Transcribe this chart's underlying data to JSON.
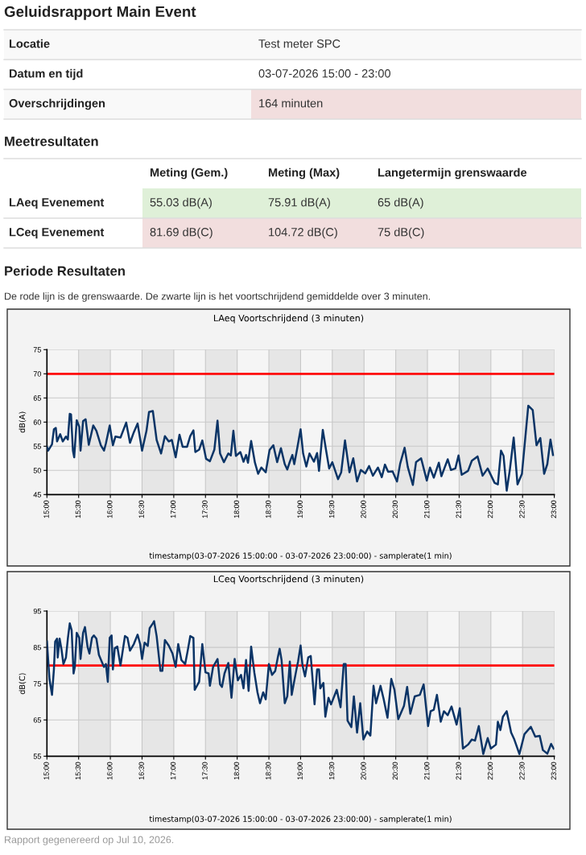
{
  "chart_data": [
    {
      "type": "other",
      "title": "Geluidsrapport Main Event",
      "y_categories": [
        "Locatie",
        "Datum en tijd",
        "Overschrijdingen"
      ],
      "cell_labels": [
        [
          "Test meter SPC"
        ],
        [
          "03-07-2026 15:00 - 23:00"
        ],
        [
          "164 minuten"
        ]
      ],
      "colors": [
        null,
        null,
        "#f2dede"
      ]
    },
    {
      "type": "other",
      "title": "Meetresultaten",
      "categories": [
        "Meting (Gem.)",
        "Meting (Max)",
        "Langetermijn grenswaarde"
      ],
      "y_categories": [
        "LAeq Evenement",
        "LCeq Evenement"
      ],
      "cell_labels": [
        [
          "55.03 dB(A)",
          "75.91 dB(A)",
          "65 dB(A)"
        ],
        [
          "81.69 dB(C)",
          "104.72 dB(C)",
          "75 dB(C)"
        ]
      ],
      "colors": [
        "#dff0d8",
        "#f2dede"
      ]
    },
    {
      "type": "other",
      "title": "Periode Resultaten",
      "subtitle": "De rode lijn is de grenswaarde. De zwarte lijn is het voortschrijdend gemiddelde over 3 minuten."
    },
    {
      "type": "line",
      "title": "LAeq Voortschrijdend (3 minuten)",
      "xlabel": "timestamp(03-07-2026 15:00:00 - 03-07-2026 23:00:00) - samplerate(1 min)",
      "ylabel": "dB(A)",
      "xlim": [
        15,
        23
      ],
      "ylim": [
        45,
        75
      ],
      "yticks": [
        45,
        50,
        55,
        60,
        65,
        70,
        75
      ],
      "xticks": [
        {
          "value": 15,
          "label": "15:00"
        },
        {
          "value": 15.5,
          "label": "15:30"
        },
        {
          "value": 16,
          "label": "16:00"
        },
        {
          "value": 16.5,
          "label": "16:30"
        },
        {
          "value": 17,
          "label": "17:00"
        },
        {
          "value": 17.5,
          "label": "17:30"
        },
        {
          "value": 18,
          "label": "18:00"
        },
        {
          "value": 18.5,
          "label": "18:30"
        },
        {
          "value": 19,
          "label": "19:00"
        },
        {
          "value": 19.5,
          "label": "19:30"
        },
        {
          "value": 20,
          "label": "20:00"
        },
        {
          "value": 20.5,
          "label": "20:30"
        },
        {
          "value": 21,
          "label": "21:00"
        },
        {
          "value": 21.5,
          "label": "21:30"
        },
        {
          "value": 22,
          "label": "22:00"
        },
        {
          "value": 22.5,
          "label": "22:30"
        },
        {
          "value": 23,
          "label": "23:00"
        }
      ],
      "grid": true,
      "line_style": "solid",
      "ref_lines": [
        {
          "axis": "y",
          "value": 70,
          "color": "#ff0000"
        }
      ],
      "bands": [
        {
          "axis": "x",
          "from": 15.5,
          "to": 16,
          "color": "#e6e6e6"
        },
        {
          "axis": "x",
          "from": 16.5,
          "to": 17,
          "color": "#e6e6e6"
        },
        {
          "axis": "x",
          "from": 17.5,
          "to": 18,
          "color": "#e6e6e6"
        },
        {
          "axis": "x",
          "from": 18.5,
          "to": 19,
          "color": "#e6e6e6"
        },
        {
          "axis": "x",
          "from": 19.5,
          "to": 20,
          "color": "#e6e6e6"
        },
        {
          "axis": "x",
          "from": 20.5,
          "to": 21,
          "color": "#e6e6e6"
        },
        {
          "axis": "x",
          "from": 21.5,
          "to": 22,
          "color": "#e6e6e6"
        },
        {
          "axis": "x",
          "from": 22.5,
          "to": 23,
          "color": "#e6e6e6"
        }
      ],
      "x": [
        15,
        15.02,
        15.08,
        15.11,
        15.14,
        15.16,
        15.21,
        15.25,
        15.3,
        15.33,
        15.36,
        15.38,
        15.41,
        15.43,
        15.47,
        15.51,
        15.53,
        15.57,
        15.61,
        15.66,
        15.73,
        15.78,
        15.85,
        15.9,
        15.93,
        15.99,
        16.04,
        16.08,
        16.16,
        16.25,
        16.31,
        16.37,
        16.43,
        16.5,
        16.57,
        16.61,
        16.67,
        16.73,
        16.8,
        16.86,
        16.92,
        16.97,
        17.03,
        17.09,
        17.14,
        17.21,
        17.26,
        17.31,
        17.34,
        17.4,
        17.45,
        17.51,
        17.57,
        17.64,
        17.69,
        17.73,
        17.79,
        17.86,
        17.9,
        17.94,
        17.98,
        18.05,
        18.1,
        18.14,
        18.17,
        18.22,
        18.28,
        18.33,
        18.38,
        18.45,
        18.51,
        18.57,
        18.63,
        18.69,
        18.75,
        18.79,
        18.83,
        18.87,
        18.9,
        18.94,
        19,
        19.04,
        19.09,
        19.14,
        19.21,
        19.26,
        19.29,
        19.35,
        19.4,
        19.45,
        19.5,
        19.59,
        19.64,
        19.7,
        19.77,
        19.83,
        19.89,
        19.95,
        20.02,
        20.08,
        20.14,
        20.22,
        20.28,
        20.33,
        20.38,
        20.45,
        20.52,
        20.57,
        20.64,
        20.69,
        20.77,
        20.82,
        20.9,
        20.99,
        21.04,
        21.1,
        21.18,
        21.22,
        21.26,
        21.32,
        21.37,
        21.44,
        21.49,
        21.54,
        21.64,
        21.7,
        21.79,
        21.87,
        21.95,
        22.06,
        22.11,
        22.16,
        22.2,
        22.25,
        22.3,
        22.36,
        22.42,
        22.49,
        22.59,
        22.66,
        22.72,
        22.78,
        22.84,
        22.89,
        22.94,
        22.98
      ],
      "series": [
        {
          "color": "#0b3466",
          "values": [
            54.9,
            54.1,
            55.4,
            58.5,
            58.8,
            56,
            57.5,
            56,
            57,
            56.4,
            61.7,
            61.6,
            54.1,
            52.7,
            60.4,
            59,
            54.1,
            60.2,
            60.6,
            55.3,
            59.3,
            58.2,
            55.2,
            54.1,
            55.6,
            59.3,
            55.2,
            57,
            56.8,
            59.9,
            55.7,
            57.9,
            59.7,
            54.1,
            58.2,
            62.1,
            62.3,
            56.3,
            53.5,
            57.1,
            56,
            56.3,
            52.7,
            57.4,
            54.9,
            54.9,
            57.1,
            58.3,
            53.8,
            54.3,
            56.2,
            52.4,
            51.9,
            54.3,
            60.3,
            53.5,
            51.7,
            53.5,
            53.1,
            58.2,
            53,
            53.8,
            51.8,
            53.2,
            51.6,
            56.1,
            51.6,
            49.3,
            50.6,
            49.6,
            54.2,
            55.2,
            51.7,
            54.6,
            51.3,
            50.2,
            51.8,
            53.2,
            51.3,
            54.1,
            58.5,
            53.5,
            50.8,
            53.5,
            51.8,
            53.6,
            49.9,
            58.4,
            54.3,
            50.4,
            51.7,
            48.2,
            49.6,
            56.2,
            49.6,
            52.5,
            47.7,
            50.1,
            49.4,
            50.9,
            48.9,
            50.6,
            48.6,
            51.2,
            49.7,
            49.8,
            47.7,
            51.4,
            54.7,
            50.7,
            47,
            51.7,
            52.5,
            47.9,
            50.6,
            48.5,
            51.6,
            48.8,
            50.2,
            52.3,
            50.1,
            50.4,
            53.1,
            49.1,
            49.9,
            52,
            52.9,
            48.9,
            50.4,
            47.4,
            47.1,
            54.1,
            53,
            45.8,
            50.2,
            56.8,
            47.1,
            49.3,
            63.4,
            62.5,
            55.2,
            56.7,
            49.3,
            51.3,
            56.4,
            53.2
          ]
        }
      ]
    },
    {
      "type": "line",
      "title": "LCeq Voortschrijdend (3 minuten)",
      "xlabel": "timestamp(03-07-2026 15:00:00 - 03-07-2026 23:00:00) - samplerate(1 min)",
      "ylabel": "dB(C)",
      "xlim": [
        15,
        23
      ],
      "ylim": [
        55,
        95
      ],
      "yticks": [
        55,
        65,
        75,
        85,
        95
      ],
      "xticks": [
        {
          "value": 15,
          "label": "15:00"
        },
        {
          "value": 15.5,
          "label": "15:30"
        },
        {
          "value": 16,
          "label": "16:00"
        },
        {
          "value": 16.5,
          "label": "16:30"
        },
        {
          "value": 17,
          "label": "17:00"
        },
        {
          "value": 17.5,
          "label": "17:30"
        },
        {
          "value": 18,
          "label": "18:00"
        },
        {
          "value": 18.5,
          "label": "18:30"
        },
        {
          "value": 19,
          "label": "19:00"
        },
        {
          "value": 19.5,
          "label": "19:30"
        },
        {
          "value": 20,
          "label": "20:00"
        },
        {
          "value": 20.5,
          "label": "20:30"
        },
        {
          "value": 21,
          "label": "21:00"
        },
        {
          "value": 21.5,
          "label": "21:30"
        },
        {
          "value": 22,
          "label": "22:00"
        },
        {
          "value": 22.5,
          "label": "22:30"
        },
        {
          "value": 23,
          "label": "23:00"
        }
      ],
      "grid": true,
      "line_style": "solid",
      "ref_lines": [
        {
          "axis": "y",
          "value": 80,
          "color": "#ff0000"
        }
      ],
      "bands": [
        {
          "axis": "x",
          "from": 15.5,
          "to": 16,
          "color": "#e6e6e6"
        },
        {
          "axis": "x",
          "from": 16.5,
          "to": 17,
          "color": "#e6e6e6"
        },
        {
          "axis": "x",
          "from": 17.5,
          "to": 18,
          "color": "#e6e6e6"
        },
        {
          "axis": "x",
          "from": 18.5,
          "to": 19,
          "color": "#e6e6e6"
        },
        {
          "axis": "x",
          "from": 19.5,
          "to": 20,
          "color": "#e6e6e6"
        },
        {
          "axis": "x",
          "from": 20.5,
          "to": 21,
          "color": "#e6e6e6"
        },
        {
          "axis": "x",
          "from": 21.5,
          "to": 22,
          "color": "#e6e6e6"
        },
        {
          "axis": "x",
          "from": 22.5,
          "to": 23,
          "color": "#e6e6e6"
        }
      ],
      "annotations": [
        "Rapport gegenereerd op Jul 10, 2026."
      ],
      "x": [
        15,
        15.02,
        15.04,
        15.06,
        15.08,
        15.11,
        15.13,
        15.16,
        15.17,
        15.2,
        15.23,
        15.26,
        15.3,
        15.33,
        15.36,
        15.39,
        15.42,
        15.44,
        15.47,
        15.51,
        15.53,
        15.57,
        15.6,
        15.64,
        15.67,
        15.71,
        15.74,
        15.78,
        15.82,
        15.9,
        15.93,
        15.96,
        15.99,
        16.02,
        16.04,
        16.07,
        16.11,
        16.16,
        16.23,
        16.27,
        16.31,
        16.37,
        16.43,
        16.47,
        16.5,
        16.54,
        16.59,
        16.62,
        16.67,
        16.69,
        16.73,
        16.79,
        16.82,
        16.86,
        16.92,
        16.98,
        17.03,
        17.07,
        17.12,
        17.18,
        17.22,
        17.26,
        17.31,
        17.33,
        17.4,
        17.45,
        17.5,
        17.55,
        17.57,
        17.62,
        17.69,
        17.73,
        17.76,
        17.8,
        17.86,
        17.91,
        17.96,
        18.01,
        18.06,
        18.1,
        18.14,
        18.18,
        18.22,
        18.27,
        18.32,
        18.36,
        18.41,
        18.45,
        18.5,
        18.55,
        18.6,
        18.64,
        18.67,
        18.7,
        18.75,
        18.79,
        18.83,
        18.86,
        18.89,
        18.93,
        18.96,
        19,
        19.03,
        19.07,
        19.12,
        19.16,
        19.19,
        19.22,
        19.26,
        19.29,
        19.31,
        19.36,
        19.39,
        19.44,
        19.48,
        19.57,
        19.63,
        19.68,
        19.71,
        19.74,
        19.8,
        19.84,
        19.89,
        19.94,
        19.99,
        20.05,
        20.1,
        20.15,
        20.19,
        20.26,
        20.31,
        20.37,
        20.43,
        20.48,
        20.54,
        20.63,
        20.68,
        20.73,
        20.8,
        20.88,
        20.94,
        21.01,
        21.05,
        21.1,
        21.15,
        21.21,
        21.26,
        21.32,
        21.38,
        21.46,
        21.51,
        21.56,
        21.64,
        21.7,
        21.75,
        21.81,
        21.88,
        21.95,
        22,
        22.08,
        22.11,
        22.15,
        22.19,
        22.25,
        22.32,
        22.37,
        22.45,
        22.53,
        22.63,
        22.7,
        22.77,
        22.82,
        22.89,
        22.95,
        22.99
      ],
      "series": [
        {
          "color": "#0b3466",
          "values": [
            86.6,
            81.5,
            76.3,
            74.1,
            71.9,
            78.9,
            86.6,
            87.4,
            82.2,
            87.4,
            84.4,
            80.4,
            82.2,
            87.4,
            91.6,
            89.7,
            77.8,
            79.6,
            89,
            87.6,
            81.8,
            89,
            90.6,
            85.2,
            83.3,
            87.6,
            88.3,
            87.4,
            82.9,
            79.6,
            80.4,
            75.5,
            87.6,
            88.3,
            78.9,
            84.8,
            85.2,
            80,
            88.1,
            87.6,
            84.1,
            85.9,
            88.5,
            85.9,
            81.8,
            86.3,
            85.4,
            90.3,
            91.6,
            92.2,
            88.1,
            78.5,
            78.5,
            87,
            85.5,
            83.3,
            79.6,
            85.9,
            81.5,
            80.4,
            84.1,
            88.1,
            87.6,
            73.3,
            75.5,
            85.9,
            78.1,
            77.8,
            74.4,
            79.6,
            81.8,
            74.8,
            74.1,
            77.8,
            80.7,
            71.1,
            81.8,
            75.9,
            77.4,
            73.7,
            81.5,
            73,
            85.2,
            78.1,
            72.6,
            69.6,
            72.6,
            70.7,
            80.4,
            77.4,
            78.5,
            82.2,
            84.6,
            81.5,
            69.6,
            71.5,
            81.1,
            71.9,
            74.8,
            78.5,
            81.1,
            85.5,
            80,
            77,
            82.2,
            82.6,
            75.9,
            69.3,
            78.9,
            78.9,
            73.7,
            75.2,
            65.9,
            71.1,
            69.3,
            73.3,
            68.5,
            80.4,
            80.4,
            64.8,
            63,
            71.5,
            61.5,
            69.6,
            59.6,
            61.8,
            60.7,
            74.4,
            69.6,
            74.4,
            70.7,
            65.6,
            76.3,
            73.3,
            65.2,
            68.9,
            74.1,
            66.7,
            71.5,
            71.9,
            74.8,
            63.3,
            67.4,
            67.8,
            71.9,
            64.5,
            67.4,
            66.3,
            68.7,
            63.7,
            68.2,
            57.1,
            58.2,
            59.6,
            59.3,
            63.3,
            55.6,
            60,
            57.1,
            58.2,
            64.5,
            62.2,
            65.9,
            67.4,
            61.5,
            59.6,
            55.6,
            61.1,
            63.1,
            60.4,
            60.6,
            56.7,
            55.7,
            58.4,
            57.1
          ]
        }
      ]
    }
  ]
}
